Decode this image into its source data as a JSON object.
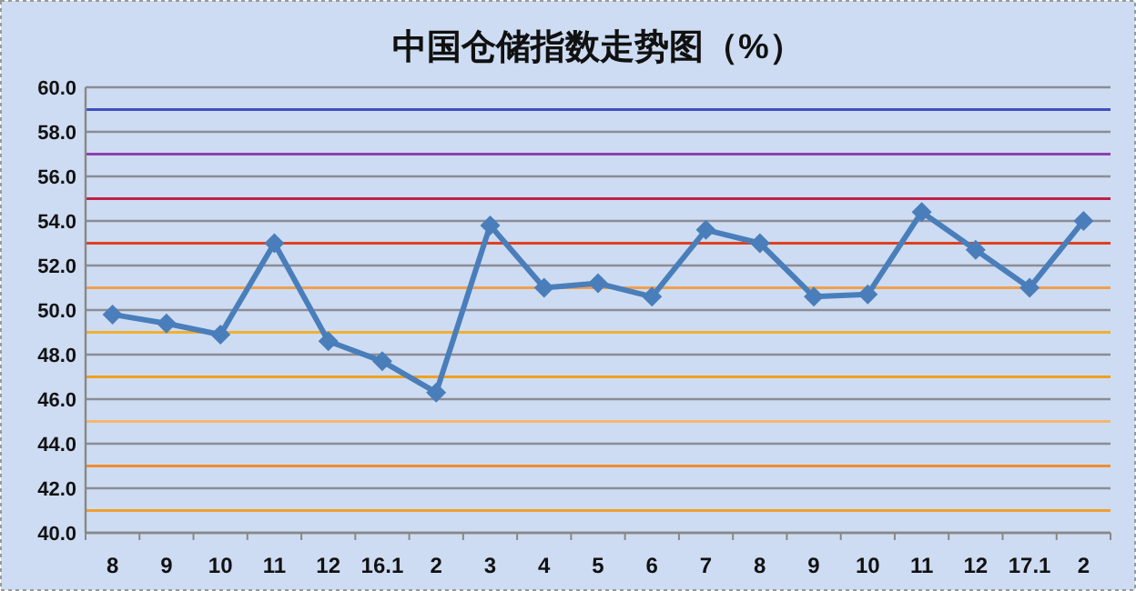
{
  "chart_data": {
    "type": "line",
    "title": "中国仓储指数走势图（%）",
    "categories": [
      "8",
      "9",
      "10",
      "11",
      "12",
      "16.1",
      "2",
      "3",
      "4",
      "5",
      "6",
      "7",
      "8",
      "9",
      "10",
      "11",
      "12",
      "17.1",
      "2"
    ],
    "series": [
      {
        "color": "#4a7ebb",
        "values": [
          49.8,
          49.4,
          48.9,
          53.0,
          48.6,
          47.7,
          46.3,
          53.8,
          51.0,
          51.2,
          50.6,
          53.6,
          53.0,
          50.6,
          50.7,
          54.4,
          52.7,
          51.0,
          54.0
        ]
      }
    ],
    "ylim": [
      40,
      60
    ],
    "yticks": [
      {
        "value": 40,
        "label": "40.0"
      },
      {
        "value": 42,
        "label": "42.0"
      },
      {
        "value": 44,
        "label": "44.0"
      },
      {
        "value": 46,
        "label": "46.0"
      },
      {
        "value": 48,
        "label": "48.0"
      },
      {
        "value": 50,
        "label": "50.0"
      },
      {
        "value": 52,
        "label": "52.0"
      },
      {
        "value": 54,
        "label": "54.0"
      },
      {
        "value": 56,
        "label": "56.0"
      },
      {
        "value": 58,
        "label": "58.0"
      },
      {
        "value": 60,
        "label": "60.0"
      }
    ],
    "grid": "y",
    "marker": "diamond",
    "line_style": "solid",
    "ref_lines": [
      {
        "axis": "y",
        "value": 41,
        "color": "#f0a030"
      },
      {
        "axis": "y",
        "value": 43,
        "color": "#f08c30"
      },
      {
        "axis": "y",
        "value": 45,
        "color": "#f5b870"
      },
      {
        "axis": "y",
        "value": 47,
        "color": "#f0a020"
      },
      {
        "axis": "y",
        "value": 49,
        "color": "#f0b030"
      },
      {
        "axis": "y",
        "value": 51,
        "color": "#f0a050"
      },
      {
        "axis": "y",
        "value": 53,
        "color": "#e04020"
      },
      {
        "axis": "y",
        "value": 55,
        "color": "#c0204a"
      },
      {
        "axis": "y",
        "value": 57,
        "color": "#9040b0"
      },
      {
        "axis": "y",
        "value": 59,
        "color": "#4050c0"
      }
    ]
  }
}
